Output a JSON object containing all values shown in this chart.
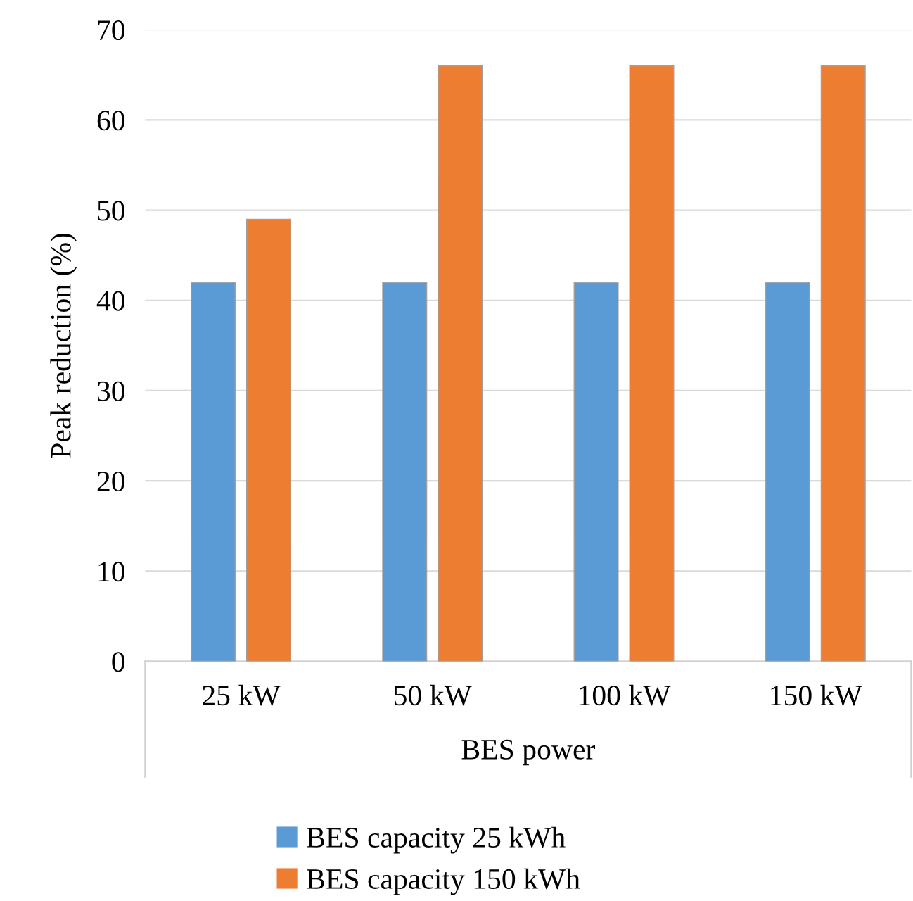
{
  "chart_data": {
    "type": "bar",
    "xlabel": "BES power",
    "ylabel": "Peak reduction (%)",
    "categories": [
      "25 kW",
      "50 kW",
      "100 kW",
      "150 kW"
    ],
    "series": [
      {
        "name": "BES capacity 25 kWh",
        "color": "#5b9bd5",
        "values": [
          42,
          42,
          42,
          42
        ]
      },
      {
        "name": "BES capacity 150 kWh",
        "color": "#ed7d31",
        "values": [
          49,
          66,
          66,
          66
        ]
      }
    ],
    "ylim": [
      0,
      70
    ],
    "yticks": [
      0,
      10,
      20,
      30,
      40,
      50,
      60,
      70
    ],
    "grid": "y",
    "legend": "bottom"
  }
}
